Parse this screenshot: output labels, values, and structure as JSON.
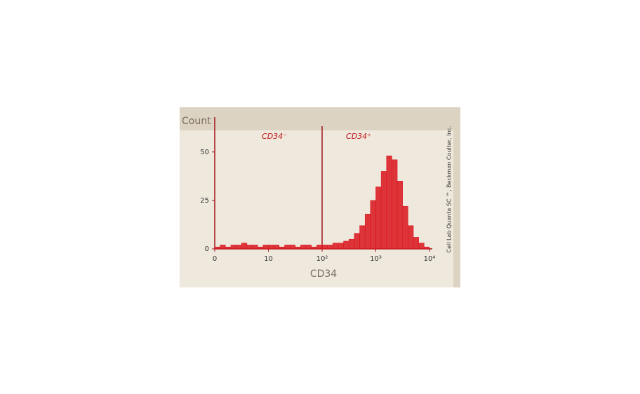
{
  "chart_data": {
    "type": "histogram",
    "y_label": "Count",
    "x_label": "CD34",
    "annotations": [
      "CD34⁻",
      "CD34⁺"
    ],
    "credit": "Cell Lab Quanta SC ™, Beckman Coulter, Inc.",
    "color": "#d9141c",
    "xscale": "log",
    "bins": [
      0,
      1,
      2,
      3,
      4,
      5,
      6,
      7,
      8,
      9,
      10,
      12.6,
      15.8,
      20,
      25.1,
      31.6,
      39.8,
      50.1,
      63.1,
      79.4,
      100,
      126,
      158,
      200,
      251,
      316,
      398,
      501,
      631,
      794,
      1000,
      1259,
      1585,
      1995,
      2512,
      3162,
      3981,
      5012,
      6310,
      7943,
      10000
    ],
    "counts": [
      1,
      2,
      1,
      2,
      2,
      3,
      2,
      2,
      1,
      2,
      2,
      2,
      1,
      2,
      2,
      1,
      2,
      2,
      1,
      2,
      2,
      2,
      3,
      3,
      4,
      5,
      8,
      12,
      18,
      25,
      32,
      40,
      48,
      46,
      35,
      22,
      12,
      6,
      3,
      1
    ],
    "xlim": [
      0,
      10000
    ],
    "xticks": [
      0,
      10,
      {
        "value": 100,
        "label": "10²"
      },
      {
        "value": 1000,
        "label": "10³"
      },
      {
        "value": 10000,
        "label": "10⁴"
      }
    ],
    "gate": {
      "value": 100
    },
    "ylim": [
      0,
      68
    ],
    "yticks": [
      0,
      25,
      50
    ]
  }
}
